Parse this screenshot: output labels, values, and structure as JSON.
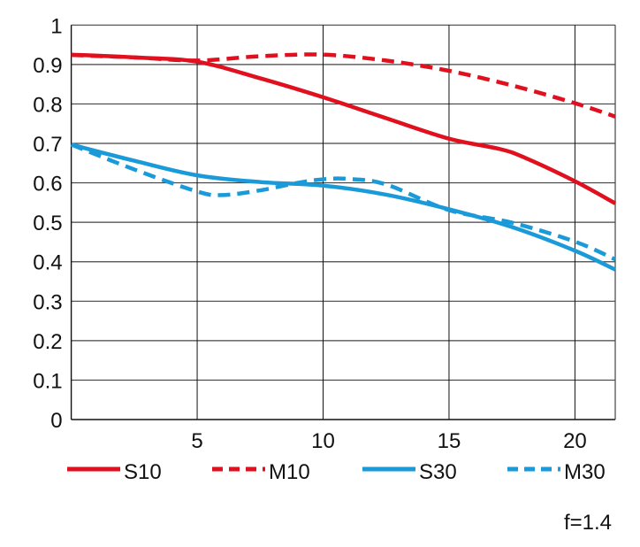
{
  "chart_data": {
    "type": "line",
    "title": "",
    "xlabel": "",
    "ylabel": "",
    "xlim": [
      0,
      21.6
    ],
    "ylim": [
      0,
      1
    ],
    "grid": true,
    "xticks": [
      5,
      10,
      15,
      20
    ],
    "yticks": [
      0,
      0.1,
      0.2,
      0.3,
      0.4,
      0.5,
      0.6,
      0.7,
      0.8,
      0.9,
      1
    ],
    "ytick_labels": [
      "0",
      "0.1",
      "0.2",
      "0.3",
      "0.4",
      "0.5",
      "0.6",
      "0.7",
      "0.8",
      "0.9",
      "1"
    ],
    "xtick_labels": [
      "5",
      "10",
      "15",
      "20"
    ],
    "legend_position": "bottom",
    "annotation": "f=1.4",
    "series": [
      {
        "name": "S10",
        "color": "#e0101e",
        "dash": false,
        "x": [
          0,
          2.5,
          5,
          7.5,
          10,
          12.5,
          15,
          17,
          18,
          20,
          21.6
        ],
        "y": [
          0.925,
          0.918,
          0.907,
          0.865,
          0.817,
          0.764,
          0.712,
          0.686,
          0.664,
          0.604,
          0.548
        ]
      },
      {
        "name": "M10",
        "color": "#e0101e",
        "dash": true,
        "x": [
          0,
          2.5,
          5,
          7.5,
          10,
          12.5,
          15,
          17.5,
          20,
          21.6
        ],
        "y": [
          0.924,
          0.918,
          0.91,
          0.921,
          0.925,
          0.91,
          0.884,
          0.847,
          0.802,
          0.768
        ]
      },
      {
        "name": "S30",
        "color": "#1a9ad9",
        "dash": false,
        "x": [
          0,
          2.5,
          5,
          7.5,
          10,
          12.5,
          15,
          17.5,
          20,
          21.6
        ],
        "y": [
          0.697,
          0.656,
          0.619,
          0.602,
          0.593,
          0.57,
          0.533,
          0.488,
          0.428,
          0.38
        ]
      },
      {
        "name": "M30",
        "color": "#1a9ad9",
        "dash": true,
        "x": [
          0,
          2.5,
          5,
          6,
          7.5,
          9,
          10,
          11,
          12.5,
          15,
          17.5,
          20,
          21.6
        ],
        "y": [
          0.697,
          0.634,
          0.578,
          0.569,
          0.581,
          0.6,
          0.609,
          0.61,
          0.596,
          0.531,
          0.499,
          0.451,
          0.406
        ]
      }
    ]
  }
}
